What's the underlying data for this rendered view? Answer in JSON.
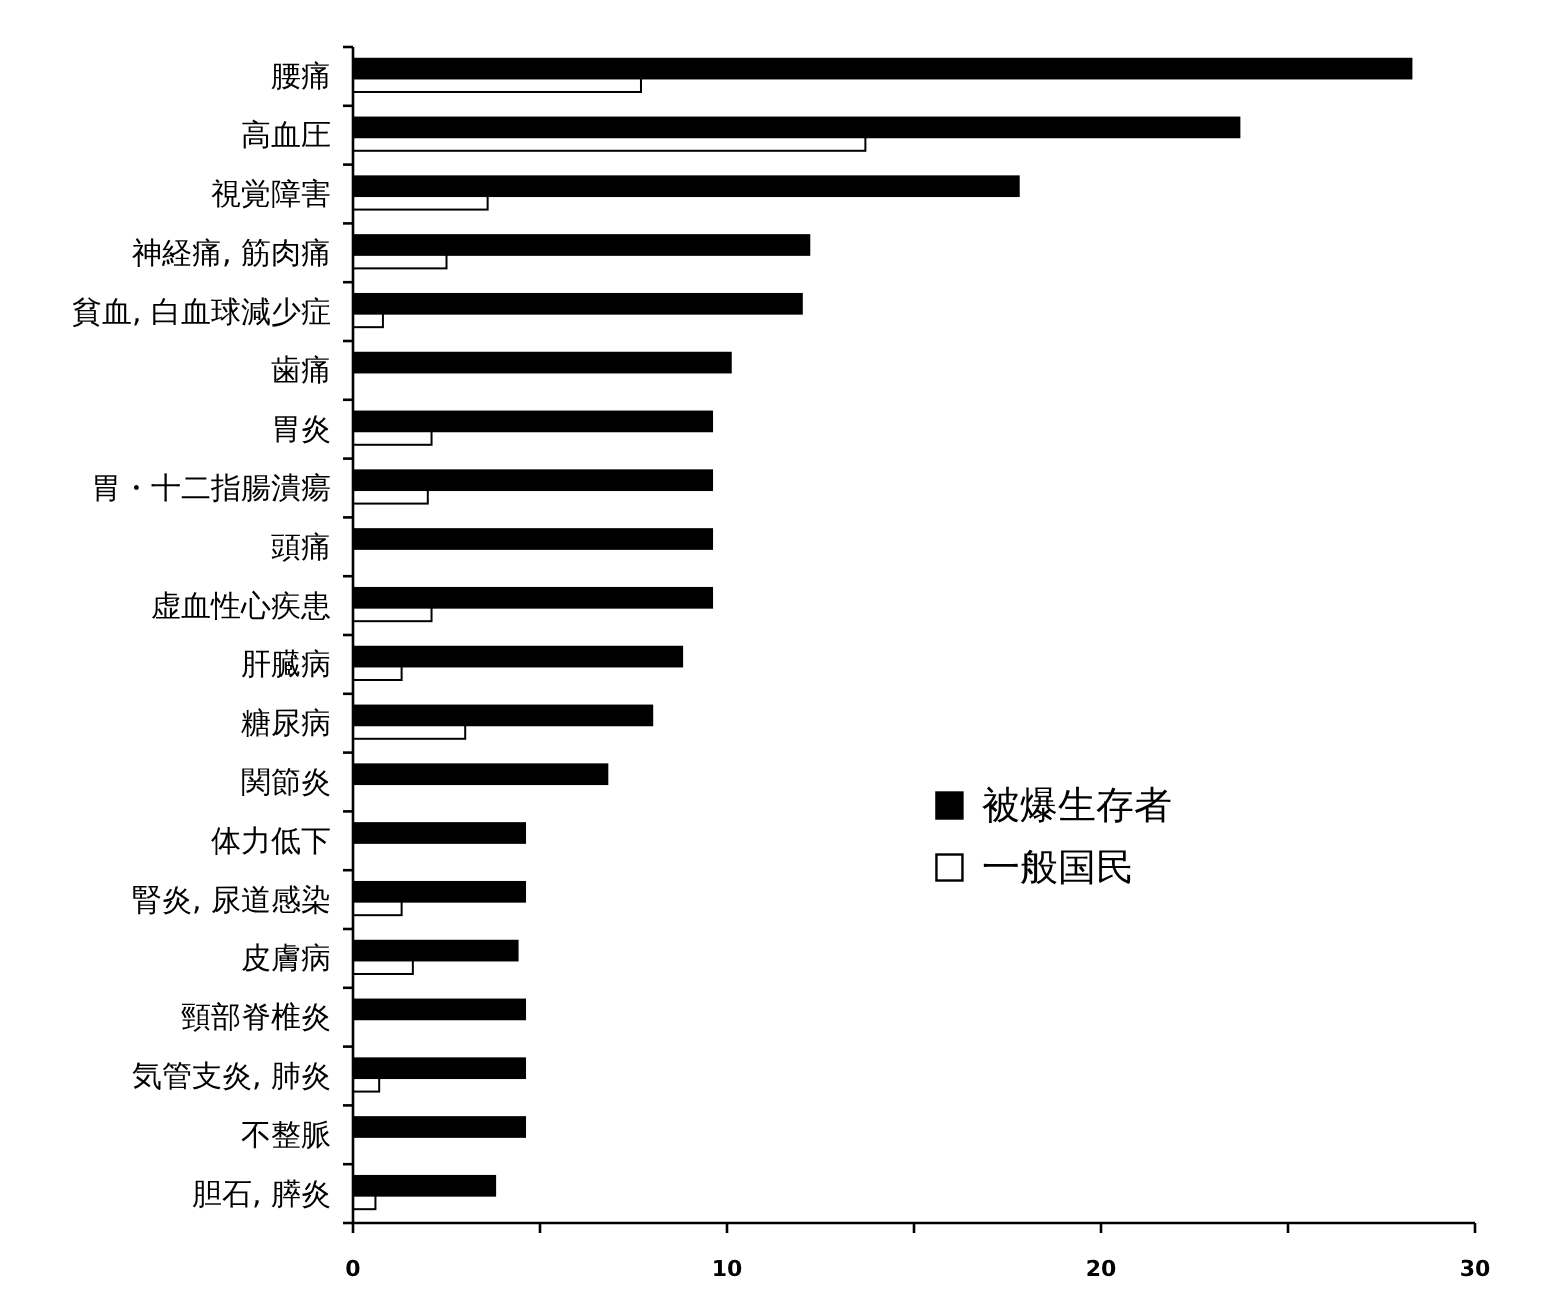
{
  "chart_data": {
    "type": "bar",
    "orientation": "horizontal",
    "categories": [
      "腰痛",
      "高血圧",
      "視覚障害",
      "神経痛, 筋肉痛",
      "貧血, 白血球減少症",
      "歯痛",
      "胃炎",
      "胃・十二指腸潰瘍",
      "頭痛",
      "虚血性心疾患",
      "肝臓病",
      "糖尿病",
      "関節炎",
      "体力低下",
      "腎炎, 尿道感染",
      "皮膚病",
      "頸部脊椎炎",
      "気管支炎, 肺炎",
      "不整脈",
      "胆石, 膵炎"
    ],
    "series": [
      {
        "name": "被爆生存者",
        "color": "#000000",
        "values": [
          28.3,
          23.7,
          17.8,
          12.2,
          12.0,
          10.1,
          9.6,
          9.6,
          9.6,
          9.6,
          8.8,
          8.0,
          6.8,
          4.6,
          4.6,
          4.4,
          4.6,
          4.6,
          4.6,
          3.8
        ]
      },
      {
        "name": "一般国民",
        "color": "#ffffff",
        "values": [
          7.7,
          13.7,
          3.6,
          2.5,
          0.8,
          null,
          2.1,
          2.0,
          null,
          2.1,
          1.3,
          3.0,
          null,
          null,
          1.3,
          1.6,
          null,
          0.7,
          null,
          0.6
        ]
      }
    ],
    "xlim": [
      0,
      30
    ],
    "xticks": [
      0,
      {
        "value": 5,
        "label": null
      },
      10,
      {
        "value": 15,
        "label": null
      },
      20,
      {
        "value": 25,
        "label": null
      },
      30
    ],
    "grid": false,
    "legend": "right"
  }
}
